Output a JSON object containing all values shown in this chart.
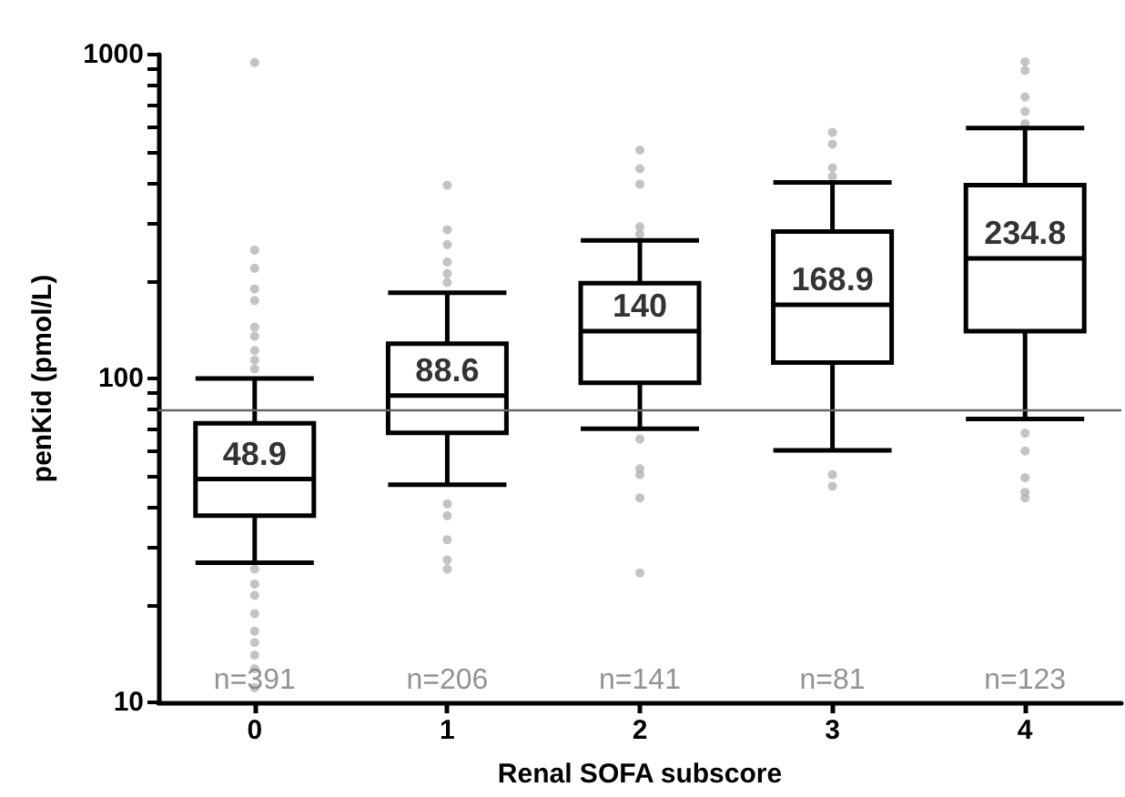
{
  "chart_data": {
    "type": "box",
    "xlabel": "Renal SOFA subscore",
    "ylabel": "penKid (pmol/L)",
    "categories": [
      "0",
      "1",
      "2",
      "3",
      "4"
    ],
    "boxes": [
      {
        "low": 27,
        "q1": 37.7,
        "median": 48.9,
        "q3": 72.7,
        "high": 100
      },
      {
        "low": 47,
        "q1": 68,
        "median": 88.6,
        "q3": 128,
        "high": 184
      },
      {
        "low": 70,
        "q1": 97,
        "median": 140,
        "q3": 197,
        "high": 267
      },
      {
        "low": 60,
        "q1": 112,
        "median": 168.9,
        "q3": 284,
        "high": 403
      },
      {
        "low": 75,
        "q1": 140,
        "median": 234.8,
        "q3": 395,
        "high": 593
      }
    ],
    "color": "#000000",
    "series": [
      {
        "type": "scatter",
        "color": "#b4b4b4",
        "x": [
          "0",
          "0",
          "0",
          "0",
          "0",
          "0",
          "0",
          "0",
          "0",
          "0",
          "0",
          "0",
          "0",
          "0",
          "0",
          "0",
          "0",
          "0",
          "0",
          "1",
          "1",
          "1",
          "1",
          "1",
          "1",
          "1",
          "1",
          "1",
          "1",
          "1",
          "2",
          "2",
          "2",
          "2",
          "2",
          "2",
          "2",
          "2",
          "2",
          "2",
          "3",
          "3",
          "3",
          "3",
          "3",
          "3",
          "4",
          "4",
          "4",
          "4",
          "4",
          "4",
          "4",
          "4",
          "4",
          "4"
        ],
        "values": [
          945,
          249,
          219,
          189,
          174,
          144,
          135,
          122,
          114,
          107,
          25.8,
          23.2,
          21.4,
          18.8,
          16.6,
          15.3,
          14,
          12.7,
          11.1,
          395,
          288,
          259,
          229,
          211,
          198,
          41,
          37.7,
          31.8,
          27.5,
          25.8,
          507,
          444,
          398,
          294,
          279,
          65,
          52.6,
          50.5,
          42.8,
          25.1,
          575,
          529,
          447,
          420,
          50.5,
          46.5,
          950,
          893,
          740,
          667,
          612,
          67.8,
          59.7,
          49.4,
          44.5,
          42.8
        ]
      }
    ],
    "ref_lines": [
      {
        "axis": "y",
        "value": 80,
        "color": "#666666"
      }
    ],
    "annotations": [
      {
        "text": "48.9",
        "x": "0",
        "y": 48.9
      },
      {
        "text": "88.6",
        "x": "1",
        "y": 88.6
      },
      {
        "text": "140",
        "x": "2",
        "y": 140
      },
      {
        "text": "168.9",
        "x": "3",
        "y": 168.9
      },
      {
        "text": "234.8",
        "x": "4",
        "y": 234.8
      },
      "n=391",
      "n=206",
      "n=141",
      "n=81",
      "n=123"
    ],
    "log": "y",
    "ylim": [
      10,
      1000
    ],
    "yticks": [
      10,
      {
        "value": 20,
        "label": null
      },
      {
        "value": 30,
        "label": null
      },
      {
        "value": 40,
        "label": null
      },
      {
        "value": 50,
        "label": null
      },
      {
        "value": 60,
        "label": null
      },
      {
        "value": 70,
        "label": null
      },
      {
        "value": 80,
        "label": null
      },
      {
        "value": 90,
        "label": null
      },
      100,
      {
        "value": 200,
        "label": null
      },
      {
        "value": 300,
        "label": null
      },
      {
        "value": 400,
        "label": null
      },
      {
        "value": 500,
        "label": null
      },
      {
        "value": 600,
        "label": null
      },
      {
        "value": 700,
        "label": null
      },
      {
        "value": 800,
        "label": null
      },
      {
        "value": 900,
        "label": null
      },
      1000
    ],
    "grid": false
  }
}
